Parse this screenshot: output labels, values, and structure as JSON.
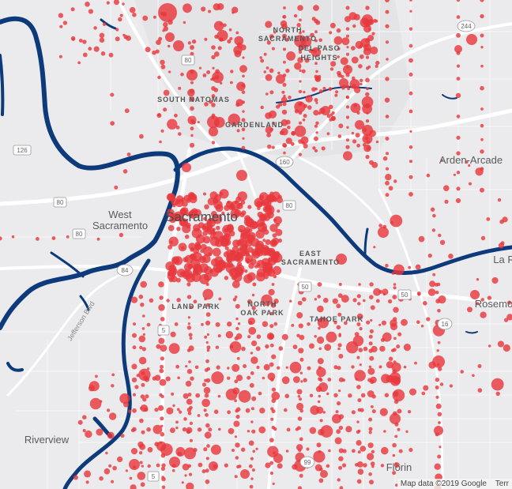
{
  "map": {
    "labels": {
      "sacramento": "Sacramento",
      "west_sacramento_1": "West",
      "west_sacramento_2": "Sacramento",
      "arden_arcade": "Arden-Arcade",
      "north_sacramento_1": "NORTH",
      "north_sacramento_2": "SACRAMENTO",
      "del_paso_1": "DEL PASO",
      "del_paso_2": "HEIGHTS",
      "south_natomas": "SOUTH NATOMAS",
      "gardenland": "GARDENLAND",
      "east_sacramento_1": "EAST",
      "east_sacramento_2": "SACRAMENTO",
      "land_park": "LAND PARK",
      "north_oak_park_1": "NORTH",
      "north_oak_park_2": "OAK PARK",
      "tahoe_park": "TAHOE PARK",
      "rosemont": "Rosemo",
      "la_riviera": "La R",
      "riverview": "Riverview",
      "florin": "Florin",
      "jefferson_blvd": "Jefferson Blvd"
    },
    "shields": {
      "i80_north": "80",
      "i80_west": "80",
      "i80_ws2": "80",
      "i80_biz": "80",
      "ca160": "160",
      "ca244": "244",
      "ca126": "126",
      "ca84": "84",
      "us50": "50",
      "us50_east": "50",
      "ca16": "16",
      "ca99": "99",
      "i5": "5",
      "i5_mid": "5"
    },
    "colors": {
      "land": "#ebebed",
      "road": "#ffffff",
      "water": "#0d3a7a",
      "dot": "#e8383d"
    },
    "attribution": "Map data ©2019 Google",
    "terms": "Terr"
  }
}
